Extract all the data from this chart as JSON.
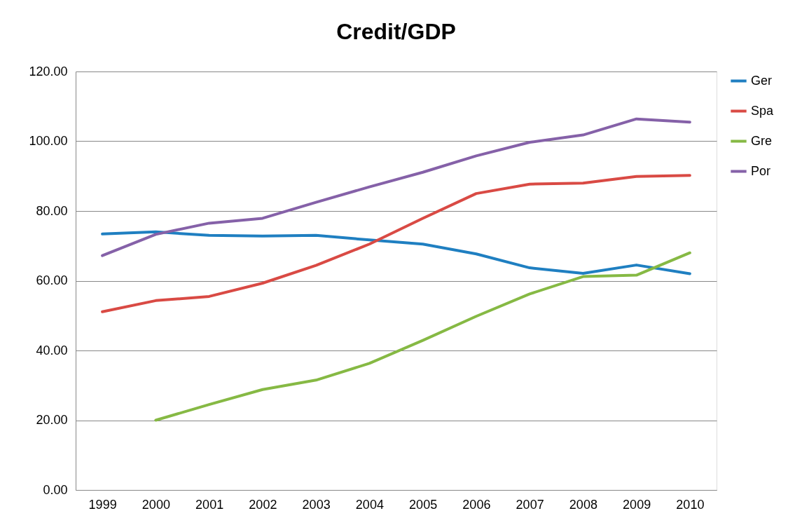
{
  "chart_data": {
    "type": "line",
    "title": "Credit/GDP",
    "categories": [
      "1999",
      "2000",
      "2001",
      "2002",
      "2003",
      "2004",
      "2005",
      "2006",
      "2007",
      "2008",
      "2009",
      "2010"
    ],
    "series": [
      {
        "name": "Ger",
        "color": "#1f7fc1",
        "values": [
          73.4,
          74.0,
          73.0,
          72.8,
          73.0,
          71.7,
          70.5,
          67.7,
          63.7,
          62.1,
          64.5,
          62.0
        ]
      },
      {
        "name": "Spa",
        "color": "#d94a44",
        "values": [
          51.1,
          54.3,
          55.5,
          59.3,
          64.4,
          70.5,
          77.9,
          85.0,
          87.7,
          88.0,
          89.9,
          90.2
        ]
      },
      {
        "name": "Gre",
        "color": "#86b944",
        "values": [
          null,
          20.0,
          24.5,
          28.8,
          31.5,
          36.3,
          42.9,
          49.8,
          56.2,
          61.2,
          61.6,
          68.0
        ]
      },
      {
        "name": "Por",
        "color": "#8561a8",
        "values": [
          67.2,
          73.3,
          76.5,
          77.9,
          82.5,
          86.9,
          91.1,
          95.8,
          99.7,
          101.8,
          106.4,
          105.5
        ]
      }
    ],
    "ylim": [
      0,
      120
    ],
    "yticks": [
      {
        "value": 0,
        "label": "0.00"
      },
      {
        "value": 20,
        "label": "20.00"
      },
      {
        "value": 40,
        "label": "40.00"
      },
      {
        "value": 60,
        "label": "60.00"
      },
      {
        "value": 80,
        "label": "80.00"
      },
      {
        "value": 100,
        "label": "100.00"
      },
      {
        "value": 120,
        "label": "120.00"
      }
    ],
    "grid": "y",
    "legend": "right",
    "marker": "none",
    "line_style": "solid"
  }
}
